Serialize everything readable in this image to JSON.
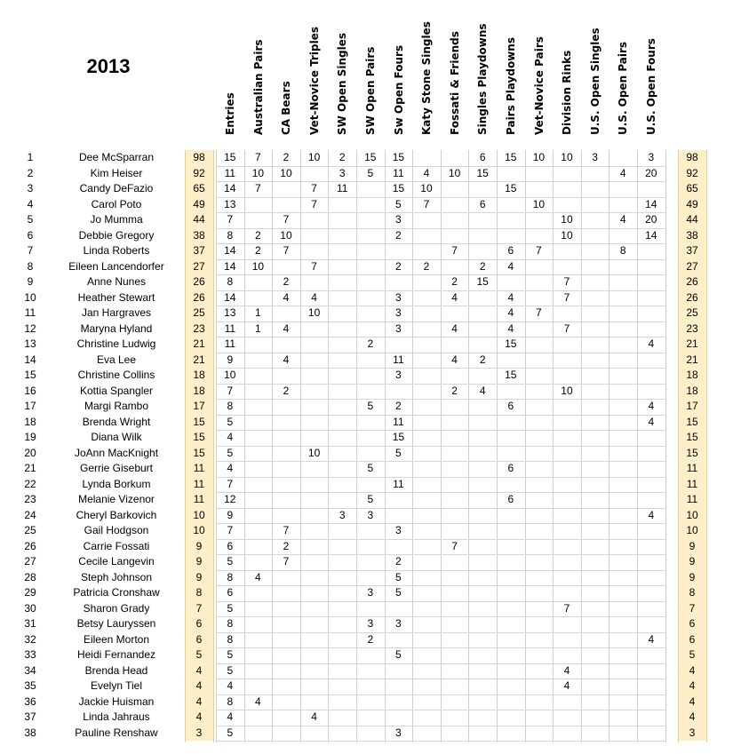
{
  "title": "2013",
  "columns": [
    "Entries",
    "Australian Pairs",
    "CA Bears",
    "Vet-Novice Triples",
    "SW Open Singles",
    "SW Open Pairs",
    "Sw Open Fours",
    "Katy Stone Singles",
    "Fossati & Friends",
    "Singles Playdowns",
    "Pairs Playdowns",
    "Vet-Novice Pairs",
    "Division Rinks",
    "U.S. Open Singles",
    "U.S. Open Pairs",
    "U.S. Open Fours"
  ],
  "rows": [
    {
      "rank": "1",
      "name": "Dee McSparran",
      "total": "98",
      "cells": [
        "15",
        "7",
        "2",
        "10",
        "2",
        "15",
        "15",
        "",
        "",
        "6",
        "15",
        "10",
        "10",
        "3",
        "",
        "3"
      ]
    },
    {
      "rank": "2",
      "name": "Kim Heiser",
      "total": "92",
      "cells": [
        "11",
        "10",
        "10",
        "",
        "3",
        "5",
        "11",
        "4",
        "10",
        "15",
        "",
        "",
        "",
        "",
        "4",
        "20"
      ]
    },
    {
      "rank": "3",
      "name": "Candy DeFazio",
      "total": "65",
      "cells": [
        "14",
        "7",
        "",
        "7",
        "11",
        "",
        "15",
        "10",
        "",
        "",
        "15",
        "",
        "",
        "",
        "",
        ""
      ]
    },
    {
      "rank": "4",
      "name": "Carol Poto",
      "total": "49",
      "cells": [
        "13",
        "",
        "",
        "7",
        "",
        "",
        "5",
        "7",
        "",
        "6",
        "",
        "10",
        "",
        "",
        "",
        "14"
      ]
    },
    {
      "rank": "5",
      "name": "Jo Mumma",
      "total": "44",
      "cells": [
        "7",
        "",
        "7",
        "",
        "",
        "",
        "3",
        "",
        "",
        "",
        "",
        "",
        "10",
        "",
        "4",
        "20"
      ]
    },
    {
      "rank": "6",
      "name": "Debbie Gregory",
      "total": "38",
      "cells": [
        "8",
        "2",
        "10",
        "",
        "",
        "",
        "2",
        "",
        "",
        "",
        "",
        "",
        "10",
        "",
        "",
        "14"
      ]
    },
    {
      "rank": "7",
      "name": "Linda Roberts",
      "total": "37",
      "cells": [
        "14",
        "2",
        "7",
        "",
        "",
        "",
        "",
        "",
        "7",
        "",
        "6",
        "7",
        "",
        "",
        "8",
        ""
      ]
    },
    {
      "rank": "8",
      "name": "Eileen Lancendorfer",
      "total": "27",
      "cells": [
        "14",
        "10",
        "",
        "7",
        "",
        "",
        "2",
        "2",
        "",
        "2",
        "4",
        "",
        "",
        "",
        "",
        ""
      ]
    },
    {
      "rank": "9",
      "name": "Anne Nunes",
      "total": "26",
      "cells": [
        "8",
        "",
        "2",
        "",
        "",
        "",
        "",
        "",
        "2",
        "15",
        "",
        "",
        "7",
        "",
        "",
        ""
      ]
    },
    {
      "rank": "10",
      "name": "Heather Stewart",
      "total": "26",
      "cells": [
        "14",
        "",
        "4",
        "4",
        "",
        "",
        "3",
        "",
        "4",
        "",
        "4",
        "",
        "7",
        "",
        "",
        ""
      ]
    },
    {
      "rank": "11",
      "name": "Jan Hargraves",
      "total": "25",
      "cells": [
        "13",
        "1",
        "",
        "10",
        "",
        "",
        "3",
        "",
        "",
        "",
        "4",
        "7",
        "",
        "",
        "",
        ""
      ]
    },
    {
      "rank": "12",
      "name": "Maryna Hyland",
      "total": "23",
      "cells": [
        "11",
        "1",
        "4",
        "",
        "",
        "",
        "3",
        "",
        "4",
        "",
        "4",
        "",
        "7",
        "",
        "",
        ""
      ]
    },
    {
      "rank": "13",
      "name": "Christine Ludwig",
      "total": "21",
      "cells": [
        "11",
        "",
        "",
        "",
        "",
        "2",
        "",
        "",
        "",
        "",
        "15",
        "",
        "",
        "",
        "",
        "4"
      ]
    },
    {
      "rank": "14",
      "name": "Eva Lee",
      "total": "21",
      "cells": [
        "9",
        "",
        "4",
        "",
        "",
        "",
        "11",
        "",
        "4",
        "2",
        "",
        "",
        "",
        "",
        "",
        ""
      ]
    },
    {
      "rank": "15",
      "name": "Christine Collins",
      "total": "18",
      "cells": [
        "10",
        "",
        "",
        "",
        "",
        "",
        "3",
        "",
        "",
        "",
        "15",
        "",
        "",
        "",
        "",
        ""
      ]
    },
    {
      "rank": "16",
      "name": "Kottia Spangler",
      "total": "18",
      "cells": [
        "7",
        "",
        "2",
        "",
        "",
        "",
        "",
        "",
        "2",
        "4",
        "",
        "",
        "10",
        "",
        "",
        ""
      ]
    },
    {
      "rank": "17",
      "name": "Margi Rambo",
      "total": "17",
      "cells": [
        "8",
        "",
        "",
        "",
        "",
        "5",
        "2",
        "",
        "",
        "",
        "6",
        "",
        "",
        "",
        "",
        "4"
      ]
    },
    {
      "rank": "18",
      "name": "Brenda Wright",
      "total": "15",
      "cells": [
        "5",
        "",
        "",
        "",
        "",
        "",
        "11",
        "",
        "",
        "",
        "",
        "",
        "",
        "",
        "",
        "4"
      ]
    },
    {
      "rank": "19",
      "name": "Diana Wilk",
      "total": "15",
      "cells": [
        "4",
        "",
        "",
        "",
        "",
        "",
        "15",
        "",
        "",
        "",
        "",
        "",
        "",
        "",
        "",
        ""
      ]
    },
    {
      "rank": "20",
      "name": "JoAnn MacKnight",
      "total": "15",
      "cells": [
        "5",
        "",
        "",
        "10",
        "",
        "",
        "5",
        "",
        "",
        "",
        "",
        "",
        "",
        "",
        "",
        ""
      ]
    },
    {
      "rank": "21",
      "name": "Gerrie Giseburt",
      "total": "11",
      "cells": [
        "4",
        "",
        "",
        "",
        "",
        "5",
        "",
        "",
        "",
        "",
        "6",
        "",
        "",
        "",
        "",
        ""
      ]
    },
    {
      "rank": "22",
      "name": "Lynda Borkum",
      "total": "11",
      "cells": [
        "7",
        "",
        "",
        "",
        "",
        "",
        "11",
        "",
        "",
        "",
        "",
        "",
        "",
        "",
        "",
        ""
      ]
    },
    {
      "rank": "23",
      "name": "Melanie Vizenor",
      "total": "11",
      "cells": [
        "12",
        "",
        "",
        "",
        "",
        "5",
        "",
        "",
        "",
        "",
        "6",
        "",
        "",
        "",
        "",
        ""
      ]
    },
    {
      "rank": "24",
      "name": "Cheryl Barkovich",
      "total": "10",
      "cells": [
        "9",
        "",
        "",
        "",
        "3",
        "3",
        "",
        "",
        "",
        "",
        "",
        "",
        "",
        "",
        "",
        "4"
      ]
    },
    {
      "rank": "25",
      "name": "Gail Hodgson",
      "total": "10",
      "cells": [
        "7",
        "",
        "7",
        "",
        "",
        "",
        "3",
        "",
        "",
        "",
        "",
        "",
        "",
        "",
        "",
        ""
      ]
    },
    {
      "rank": "26",
      "name": "Carrie Fossati",
      "total": "9",
      "cells": [
        "6",
        "",
        "2",
        "",
        "",
        "",
        "",
        "",
        "7",
        "",
        "",
        "",
        "",
        "",
        "",
        ""
      ]
    },
    {
      "rank": "27",
      "name": "Cecile Langevin",
      "total": "9",
      "cells": [
        "5",
        "",
        "7",
        "",
        "",
        "",
        "2",
        "",
        "",
        "",
        "",
        "",
        "",
        "",
        "",
        ""
      ]
    },
    {
      "rank": "28",
      "name": "Steph Johnson",
      "total": "9",
      "cells": [
        "8",
        "4",
        "",
        "",
        "",
        "",
        "5",
        "",
        "",
        "",
        "",
        "",
        "",
        "",
        "",
        ""
      ]
    },
    {
      "rank": "29",
      "name": "Patricia Cronshaw",
      "total": "8",
      "cells": [
        "6",
        "",
        "",
        "",
        "",
        "3",
        "5",
        "",
        "",
        "",
        "",
        "",
        "",
        "",
        "",
        ""
      ]
    },
    {
      "rank": "30",
      "name": "Sharon Grady",
      "total": "7",
      "cells": [
        "5",
        "",
        "",
        "",
        "",
        "",
        "",
        "",
        "",
        "",
        "",
        "",
        "7",
        "",
        "",
        ""
      ]
    },
    {
      "rank": "31",
      "name": "Betsy Lauryssen",
      "total": "6",
      "cells": [
        "8",
        "",
        "",
        "",
        "",
        "3",
        "3",
        "",
        "",
        "",
        "",
        "",
        "",
        "",
        "",
        ""
      ]
    },
    {
      "rank": "32",
      "name": "Eileen Morton",
      "total": "6",
      "cells": [
        "8",
        "",
        "",
        "",
        "",
        "2",
        "",
        "",
        "",
        "",
        "",
        "",
        "",
        "",
        "",
        "4"
      ]
    },
    {
      "rank": "33",
      "name": "Heidi Fernandez",
      "total": "5",
      "cells": [
        "5",
        "",
        "",
        "",
        "",
        "",
        "5",
        "",
        "",
        "",
        "",
        "",
        "",
        "",
        "",
        ""
      ]
    },
    {
      "rank": "34",
      "name": "Brenda Head",
      "total": "4",
      "cells": [
        "5",
        "",
        "",
        "",
        "",
        "",
        "",
        "",
        "",
        "",
        "",
        "",
        "4",
        "",
        "",
        ""
      ]
    },
    {
      "rank": "35",
      "name": "Evelyn Tiel",
      "total": "4",
      "cells": [
        "4",
        "",
        "",
        "",
        "",
        "",
        "",
        "",
        "",
        "",
        "",
        "",
        "4",
        "",
        "",
        ""
      ]
    },
    {
      "rank": "36",
      "name": "Jackie Huisman",
      "total": "4",
      "cells": [
        "8",
        "4",
        "",
        "",
        "",
        "",
        "",
        "",
        "",
        "",
        "",
        "",
        "",
        "",
        "",
        ""
      ]
    },
    {
      "rank": "37",
      "name": "Linda Jahraus",
      "total": "4",
      "cells": [
        "4",
        "",
        "",
        "4",
        "",
        "",
        "",
        "",
        "",
        "",
        "",
        "",
        "",
        "",
        "",
        ""
      ]
    },
    {
      "rank": "38",
      "name": "Pauline Renshaw",
      "total": "3",
      "cells": [
        "5",
        "",
        "",
        "",
        "",
        "",
        "3",
        "",
        "",
        "",
        "",
        "",
        "",
        "",
        "",
        ""
      ]
    }
  ]
}
